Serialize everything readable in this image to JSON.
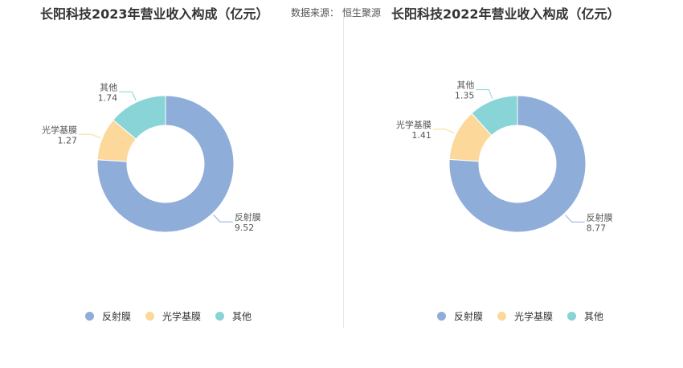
{
  "source": {
    "label": "数据来源：",
    "value": "恒生聚源"
  },
  "colors": {
    "反射膜": "#8fadd9",
    "光学基膜": "#fcd89a",
    "其他": "#88d4d7"
  },
  "chart_data": [
    {
      "type": "pie",
      "title": "长阳科技2023年营业收入构成（亿元）",
      "categories": [
        "反射膜",
        "光学基膜",
        "其他"
      ],
      "values": [
        9.52,
        1.27,
        1.74
      ],
      "labels": [
        {
          "name": "反射膜",
          "value": "9.52"
        },
        {
          "name": "光学基膜",
          "value": "1.27"
        },
        {
          "name": "其他",
          "value": "1.74"
        }
      ],
      "legend": [
        "反射膜",
        "光学基膜",
        "其他"
      ],
      "legend_position": "bottom"
    },
    {
      "type": "pie",
      "title": "长阳科技2022年营业收入构成（亿元）",
      "categories": [
        "反射膜",
        "光学基膜",
        "其他"
      ],
      "values": [
        8.77,
        1.41,
        1.35
      ],
      "labels": [
        {
          "name": "反射膜",
          "value": "8.77"
        },
        {
          "name": "光学基膜",
          "value": "1.41"
        },
        {
          "name": "其他",
          "value": "1.35"
        }
      ],
      "legend": [
        "反射膜",
        "光学基膜",
        "其他"
      ],
      "legend_position": "bottom"
    }
  ]
}
